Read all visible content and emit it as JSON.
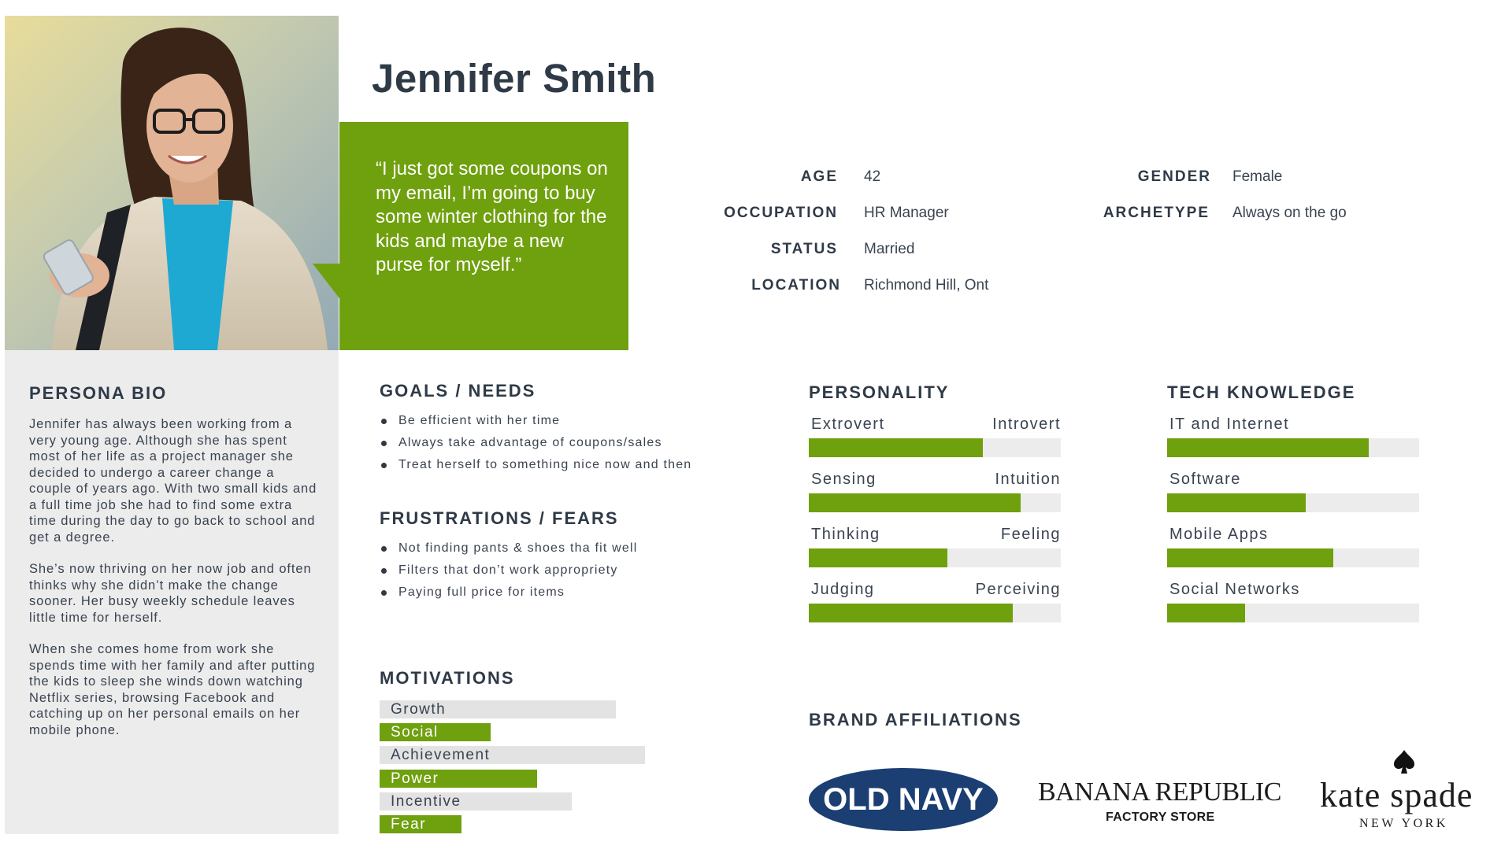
{
  "persona": {
    "name": "Jennifer Smith",
    "quote": "“I just got some coupons on my email, I’m going to buy some winter clothing for the kids and maybe a new purse for myself.”"
  },
  "info": {
    "age_label": "AGE",
    "age": "42",
    "occupation_label": "OCCUPATION",
    "occupation": "HR Manager",
    "status_label": "STATUS",
    "status": "Married",
    "location_label": "LOCATION",
    "location": "Richmond Hill, Ont",
    "gender_label": "GENDER",
    "gender": "Female",
    "archetype_label": "ARCHETYPE",
    "archetype": "Always on the go"
  },
  "bio": {
    "title": "PERSONA BIO",
    "paragraphs": [
      "Jennifer has always been working from a very young age. Although she has spent most of her life as a project manager she decided to undergo a career change a couple of years ago. With two small kids and a full time job she had to find some extra time during the day to go back to school and get a degree.",
      "She’s now thriving on her now job and often thinks why she didn’t make the change sooner. Her busy weekly schedule leaves little time for herself.",
      "When she comes home from work she spends time with her family and after putting the kids to sleep she winds down watching Netflix series, browsing Facebook and catching up on her personal emails on her mobile phone."
    ]
  },
  "goals": {
    "title": "GOALS / NEEDS",
    "items": [
      "Be efficient with her time",
      "Always take advantage of coupons/sales",
      "Treat herself to something nice now and then"
    ]
  },
  "frustrations": {
    "title": "FRUSTRATIONS / FEARS",
    "items": [
      "Not finding pants & shoes tha fit well",
      "Filters that don’t work appropriety",
      "Paying full price for items"
    ]
  },
  "motivations": {
    "title": "MOTIVATIONS",
    "items": [
      {
        "label": "Growth",
        "value": 0.81,
        "highlight": false
      },
      {
        "label": "Social",
        "value": 0.38,
        "highlight": true
      },
      {
        "label": "Achievement",
        "value": 0.91,
        "highlight": false
      },
      {
        "label": "Power",
        "value": 0.54,
        "highlight": true
      },
      {
        "label": "Incentive",
        "value": 0.66,
        "highlight": false
      },
      {
        "label": "Fear",
        "value": 0.28,
        "highlight": true
      }
    ]
  },
  "personality": {
    "title": "PERSONALITY",
    "items": [
      {
        "left": "Extrovert",
        "right": "Introvert",
        "value": 0.69
      },
      {
        "left": "Sensing",
        "right": "Intuition",
        "value": 0.84
      },
      {
        "left": "Thinking",
        "right": "Feeling",
        "value": 0.55
      },
      {
        "left": "Judging",
        "right": "Perceiving",
        "value": 0.81
      }
    ]
  },
  "tech": {
    "title": "TECH KNOWLEDGE",
    "items": [
      {
        "label": "IT and Internet",
        "value": 0.8
      },
      {
        "label": "Software",
        "value": 0.55
      },
      {
        "label": "Mobile Apps",
        "value": 0.66
      },
      {
        "label": "Social Networks",
        "value": 0.31
      }
    ]
  },
  "brands": {
    "title": "BRAND AFFILIATIONS",
    "old_navy": "OLD NAVY",
    "banana_republic": "BANANA REPUBLIC",
    "banana_republic_sub": "FACTORY STORE",
    "kate_spade": "kate spade",
    "kate_spade_sub": "NEW YORK"
  },
  "colors": {
    "accent": "#6fa00e",
    "text": "#2f3a47",
    "track": "#ececec",
    "panel": "#ececec",
    "old_navy": "#1b3f72"
  }
}
